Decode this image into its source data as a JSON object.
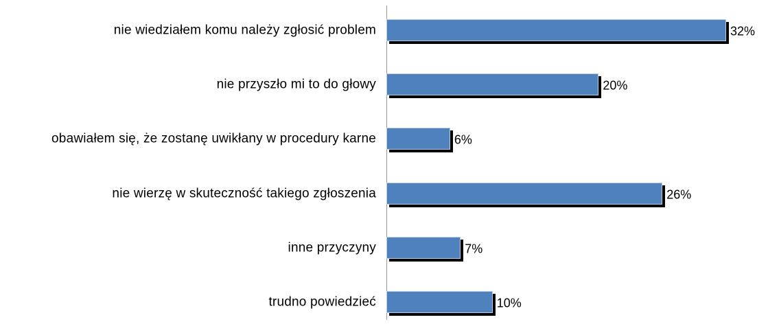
{
  "chart_data": {
    "type": "bar",
    "orientation": "horizontal",
    "categories": [
      "nie wiedziałem komu należy zgłosić problem",
      "nie przyszło mi to do głowy",
      "obawiałem się, że zostanę uwikłany w procedury karne",
      "nie wierzę w skuteczność takiego zgłoszenia",
      "inne przyczyny",
      "trudno powiedzieć"
    ],
    "values": [
      32,
      20,
      6,
      26,
      7,
      10
    ],
    "value_labels": [
      "32%",
      "20%",
      "6%",
      "26%",
      "7%",
      "10%"
    ],
    "color": "#4f81bd"
  }
}
